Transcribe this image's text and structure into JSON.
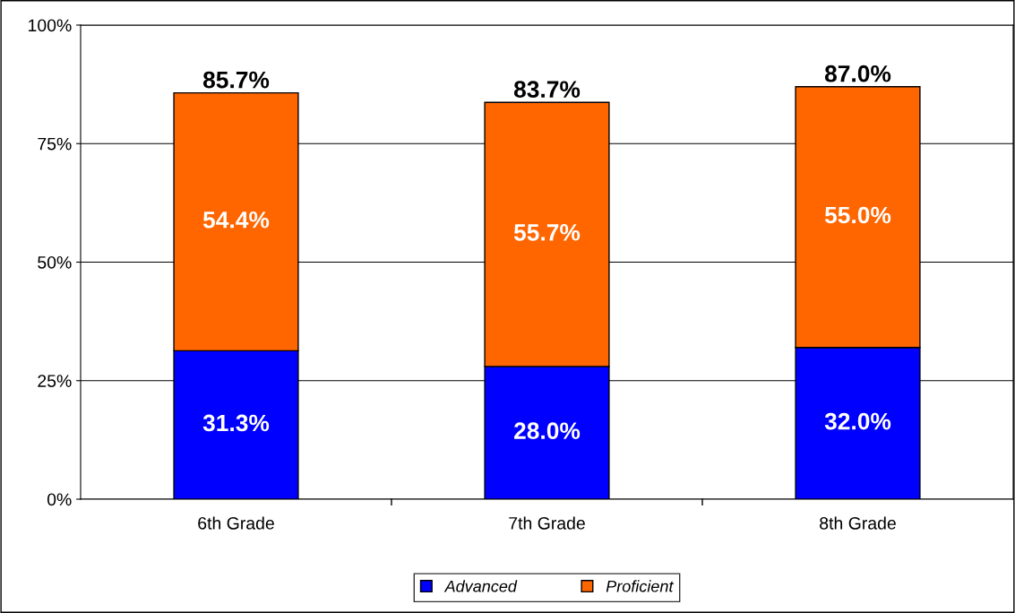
{
  "chart_data": {
    "type": "bar",
    "stacked": true,
    "categories": [
      "6th Grade",
      "7th Grade",
      "8th Grade"
    ],
    "series": [
      {
        "name": "Advanced",
        "color": "#0000ff",
        "values": [
          31.3,
          28.0,
          32.0
        ],
        "value_labels": [
          "31.3%",
          "28.0%",
          "32.0%"
        ]
      },
      {
        "name": "Proficient",
        "color": "#ff6600",
        "values": [
          54.4,
          55.7,
          55.0
        ],
        "value_labels": [
          "54.4%",
          "55.7%",
          "55.0%"
        ]
      }
    ],
    "totals": [
      "85.7%",
      "83.7%",
      "87.0%"
    ],
    "ylim": [
      0,
      100
    ],
    "yticks": [
      {
        "value": 0,
        "label": "0%"
      },
      {
        "value": 25,
        "label": "25%"
      },
      {
        "value": 50,
        "label": "50%"
      },
      {
        "value": 75,
        "label": "75%"
      },
      {
        "value": 100,
        "label": "100%"
      }
    ],
    "grid": "y",
    "legend": "bottom"
  }
}
